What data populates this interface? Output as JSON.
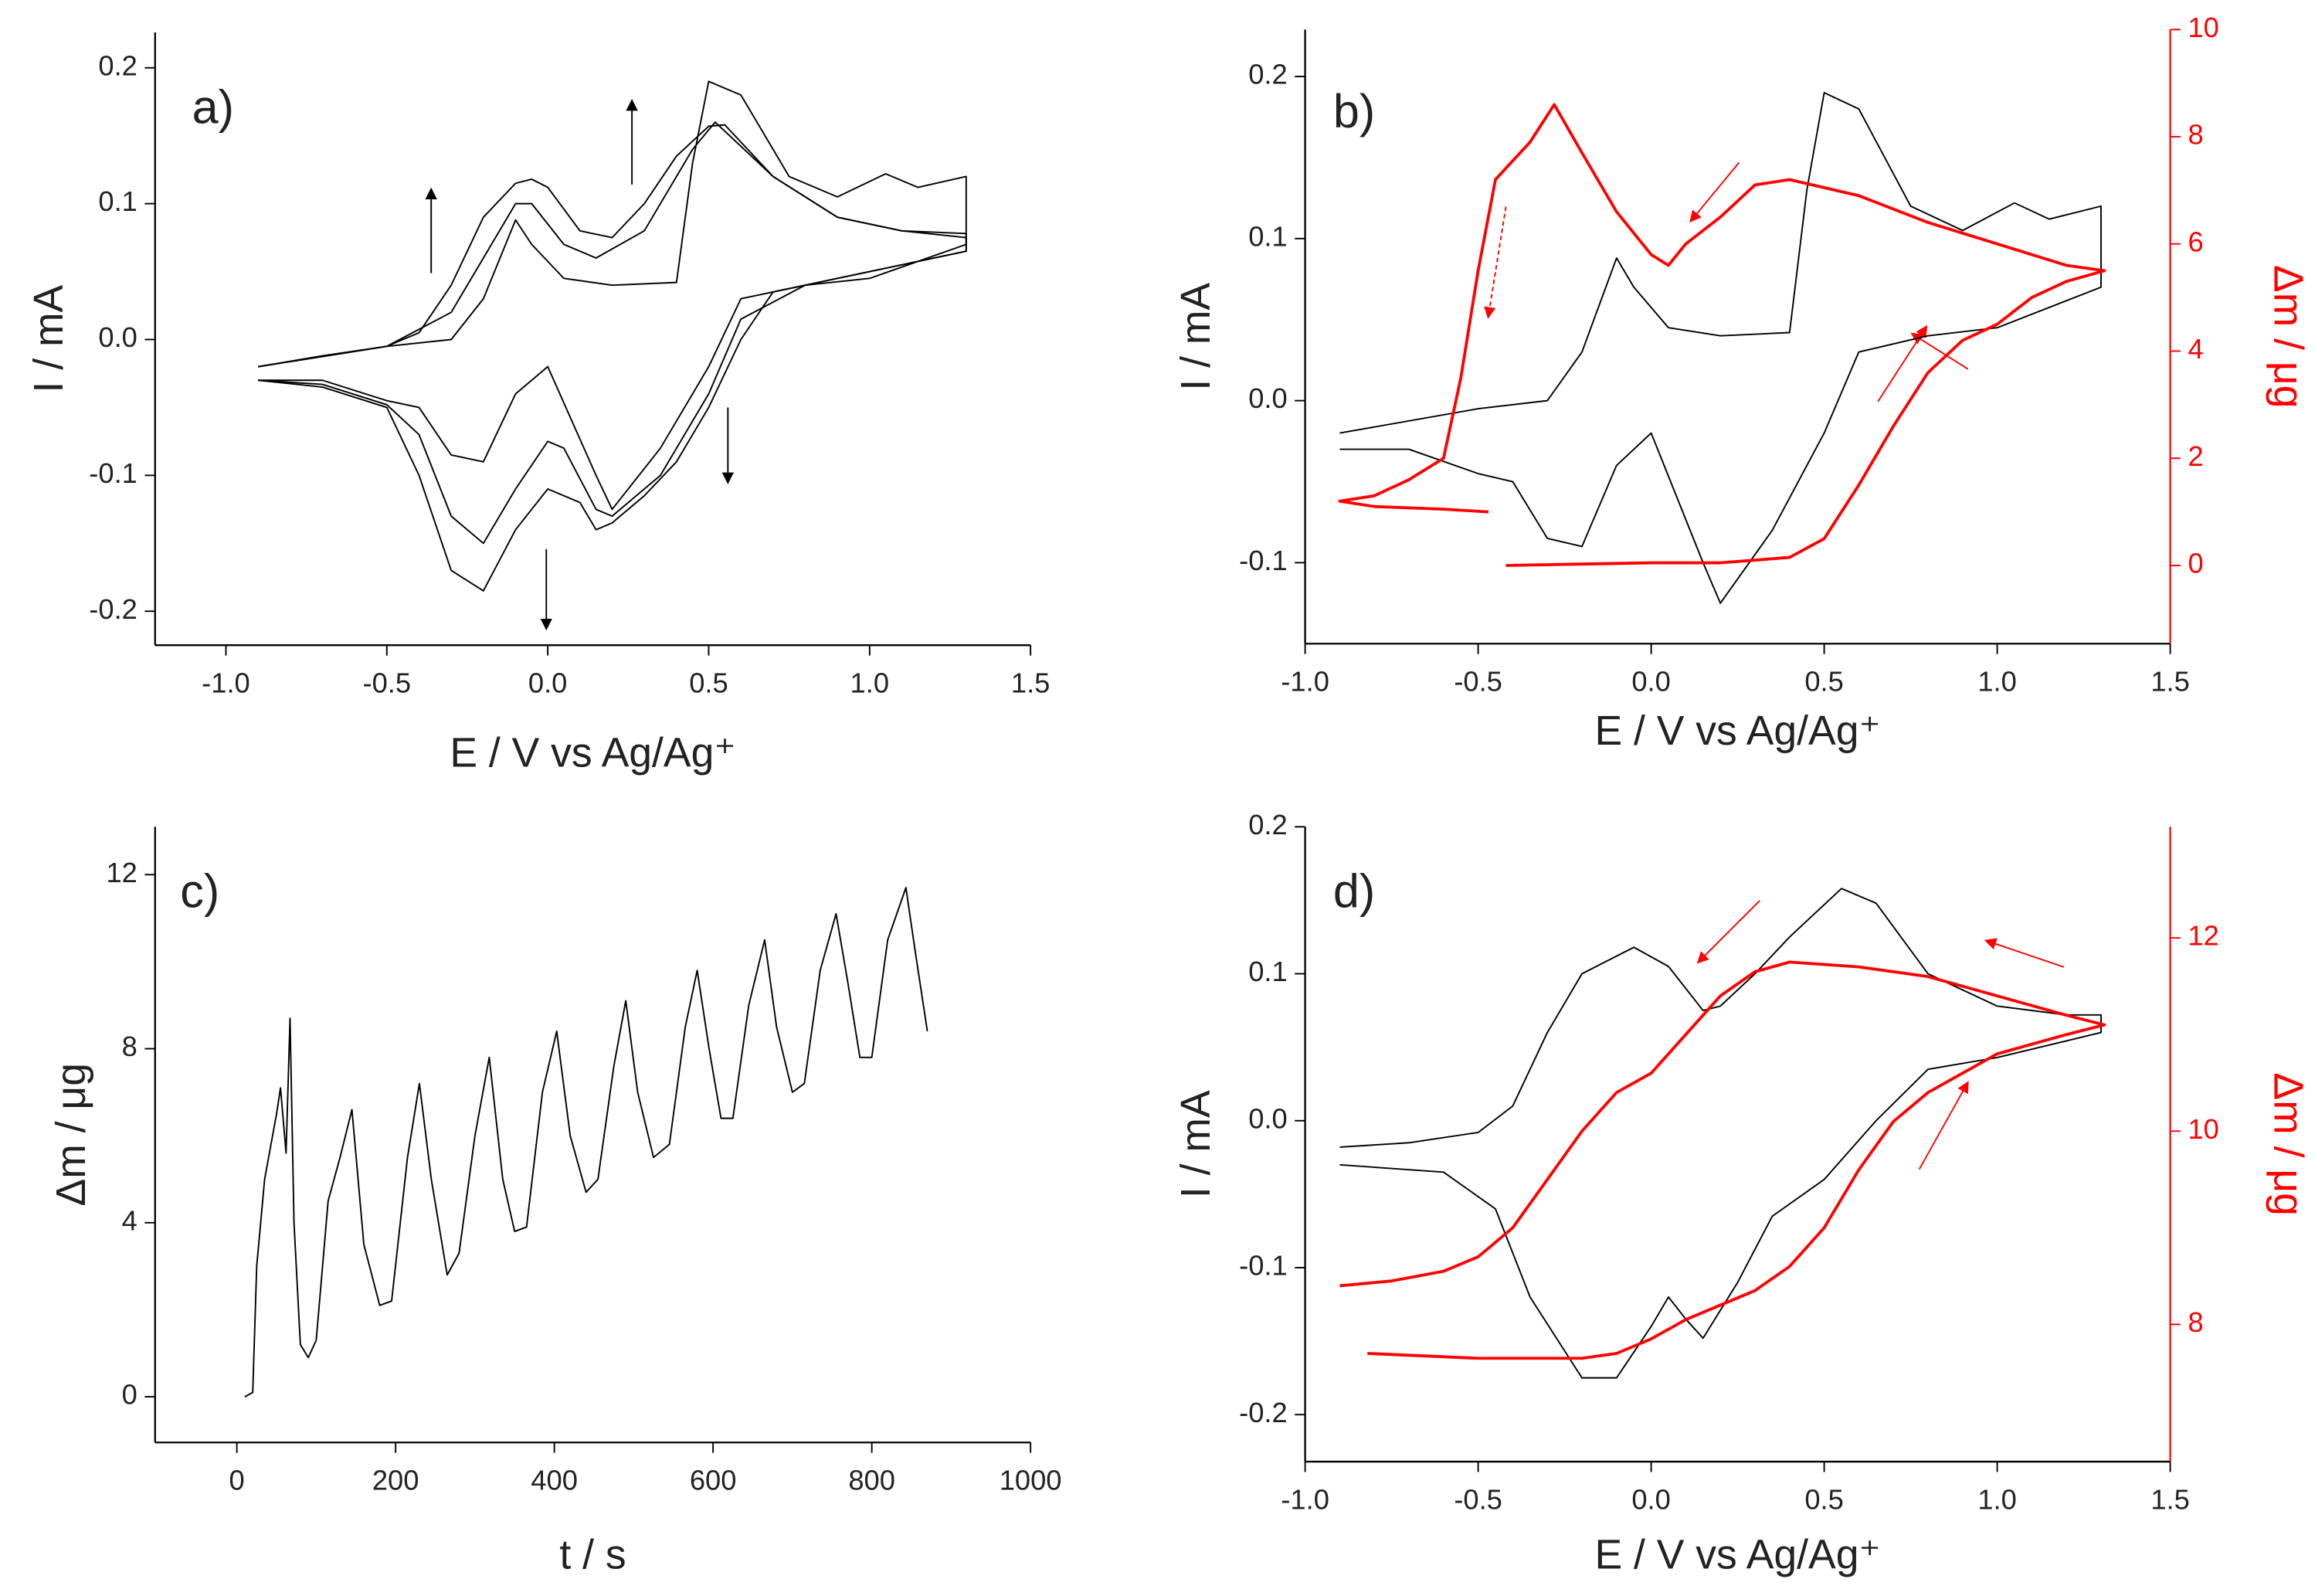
{
  "chart_data": [
    {
      "type": "line",
      "title": "a)",
      "xlabel": "E / V vs Ag/Ag⁺",
      "ylabel": "I / mA",
      "xlim": [
        -1.22,
        1.5
      ],
      "ylim": [
        -0.225,
        0.226
      ],
      "xticks": [
        {
          "value": -1,
          "label": "-1.0"
        },
        -0.5,
        {
          "value": 0,
          "label": "0.0"
        },
        0.5,
        {
          "value": 1,
          "label": "1.0"
        },
        1.5
      ],
      "yticks": [
        -0.2,
        -0.1,
        {
          "value": 0,
          "label": "0.0"
        },
        0.1,
        0.2
      ],
      "series": [
        {
          "color": "#000000",
          "x": [
            -0.9,
            -0.5,
            -0.3,
            -0.2,
            -0.1,
            -0.05,
            0.05,
            0.2,
            0.4,
            0.45,
            0.5,
            0.6,
            0.75,
            0.9,
            1.05,
            1.15,
            1.3,
            1.3,
            1.0,
            0.8,
            0.6,
            0.5,
            0.35,
            0.2,
            0.15,
            0.0,
            -0.1,
            -0.2,
            -0.3,
            -0.4,
            -0.5,
            -0.7,
            -0.9
          ],
          "values": [
            -0.02,
            -0.005,
            0.0,
            0.03,
            0.088,
            0.07,
            0.045,
            0.04,
            0.042,
            0.13,
            0.19,
            0.18,
            0.12,
            0.105,
            0.122,
            0.112,
            0.12,
            0.07,
            0.045,
            0.04,
            0.03,
            -0.02,
            -0.08,
            -0.125,
            -0.1,
            -0.02,
            -0.04,
            -0.09,
            -0.085,
            -0.05,
            -0.045,
            -0.03,
            -0.03
          ]
        },
        {
          "color": "#000000",
          "x": [
            -0.9,
            -0.5,
            -0.3,
            -0.2,
            -0.1,
            -0.05,
            0.05,
            0.15,
            0.3,
            0.45,
            0.52,
            0.7,
            0.9,
            1.1,
            1.3,
            1.3,
            1.0,
            0.8,
            0.6,
            0.5,
            0.35,
            0.2,
            0.15,
            0.05,
            0.0,
            -0.1,
            -0.2,
            -0.3,
            -0.4,
            -0.5,
            -0.7,
            -0.9
          ],
          "values": [
            -0.02,
            -0.005,
            0.02,
            0.06,
            0.1,
            0.1,
            0.07,
            0.06,
            0.08,
            0.14,
            0.16,
            0.12,
            0.09,
            0.08,
            0.078,
            0.065,
            0.05,
            0.04,
            0.015,
            -0.04,
            -0.1,
            -0.13,
            -0.125,
            -0.08,
            -0.075,
            -0.11,
            -0.15,
            -0.13,
            -0.07,
            -0.048,
            -0.033,
            -0.03
          ]
        },
        {
          "color": "#000000",
          "x": [
            -0.9,
            -0.7,
            -0.5,
            -0.4,
            -0.3,
            -0.2,
            -0.1,
            -0.05,
            0.0,
            0.1,
            0.2,
            0.3,
            0.4,
            0.5,
            0.55,
            0.7,
            0.9,
            1.1,
            1.3,
            1.3,
            1.1,
            0.9,
            0.7,
            0.6,
            0.5,
            0.4,
            0.3,
            0.2,
            0.15,
            0.1,
            0.0,
            -0.1,
            -0.2,
            -0.3,
            -0.4,
            -0.5,
            -0.7,
            -0.9
          ],
          "values": [
            -0.02,
            -0.012,
            -0.005,
            0.005,
            0.04,
            0.09,
            0.115,
            0.118,
            0.112,
            0.08,
            0.075,
            0.1,
            0.135,
            0.157,
            0.158,
            0.12,
            0.09,
            0.08,
            0.075,
            0.065,
            0.055,
            0.045,
            0.035,
            0.0,
            -0.05,
            -0.09,
            -0.115,
            -0.135,
            -0.14,
            -0.12,
            -0.11,
            -0.14,
            -0.185,
            -0.17,
            -0.1,
            -0.05,
            -0.035,
            -0.03
          ]
        }
      ]
    },
    {
      "type": "line",
      "title": "b)",
      "xlabel": "E / V vs Ag/Ag⁺",
      "ylabel": "I / mA",
      "y2label": "Δm / μg",
      "xlim": [
        -1,
        1.5
      ],
      "ylim": [
        -0.15,
        0.229
      ],
      "y2lim": [
        -1.46,
        10
      ],
      "xticks": [
        {
          "value": -1,
          "label": "-1.0"
        },
        -0.5,
        {
          "value": 0,
          "label": "0.0"
        },
        0.5,
        {
          "value": 1,
          "label": "1.0"
        },
        1.5
      ],
      "yticks": [
        -0.1,
        {
          "value": 0,
          "label": "0.0"
        },
        0.1,
        0.2
      ],
      "y2ticks": [
        0,
        2,
        4,
        6,
        8,
        10
      ],
      "series": [
        {
          "color": "#000000",
          "x": [
            -0.9,
            -0.5,
            -0.3,
            -0.2,
            -0.1,
            -0.05,
            0.05,
            0.2,
            0.4,
            0.45,
            0.5,
            0.6,
            0.75,
            0.9,
            1.05,
            1.15,
            1.3,
            1.3,
            1.0,
            0.8,
            0.6,
            0.5,
            0.35,
            0.2,
            0.15,
            0.0,
            -0.1,
            -0.2,
            -0.3,
            -0.4,
            -0.5,
            -0.7,
            -0.9
          ],
          "values": [
            -0.02,
            -0.005,
            0.0,
            0.03,
            0.088,
            0.07,
            0.045,
            0.04,
            0.042,
            0.13,
            0.19,
            0.18,
            0.12,
            0.105,
            0.122,
            0.112,
            0.12,
            0.07,
            0.045,
            0.04,
            0.03,
            -0.02,
            -0.08,
            -0.125,
            -0.1,
            -0.02,
            -0.04,
            -0.09,
            -0.085,
            -0.05,
            -0.045,
            -0.03,
            -0.03
          ]
        },
        {
          "color": "#ff0000",
          "axis": "y2",
          "x": [
            -0.42,
            0.0,
            0.2,
            0.4,
            0.5,
            0.6,
            0.7,
            0.8,
            0.9,
            1.0,
            1.1,
            1.2,
            1.31,
            1.2,
            1.0,
            0.8,
            0.6,
            0.4,
            0.3,
            0.2,
            0.1,
            0.05,
            0.0,
            -0.1,
            -0.2,
            -0.28,
            -0.35,
            -0.45,
            -0.5,
            -0.55,
            -0.6,
            -0.7,
            -0.8,
            -0.9,
            -0.8,
            -0.6,
            -0.47
          ],
          "values": [
            0.0,
            0.05,
            0.05,
            0.15,
            0.5,
            1.5,
            2.6,
            3.6,
            4.2,
            4.5,
            5.0,
            5.3,
            5.5,
            5.6,
            6.0,
            6.4,
            6.9,
            7.2,
            7.1,
            6.5,
            6.0,
            5.6,
            5.8,
            6.6,
            7.7,
            8.6,
            7.9,
            7.2,
            5.5,
            3.5,
            2.0,
            1.6,
            1.3,
            1.2,
            1.1,
            1.05,
            1.0
          ]
        }
      ]
    },
    {
      "type": "line",
      "title": "c)",
      "xlabel": "t / s",
      "ylabel": "Δm / μg",
      "xlim": [
        -103,
        1000
      ],
      "ylim": [
        -1.05,
        13.1
      ],
      "xticks": [
        0,
        200,
        400,
        600,
        800,
        1000
      ],
      "yticks": [
        0,
        4,
        8,
        12
      ],
      "series": [
        {
          "color": "#000000",
          "x": [
            10,
            20,
            25,
            35,
            50,
            55,
            62,
            67,
            72,
            80,
            90,
            100,
            115,
            130,
            145,
            160,
            180,
            195,
            215,
            230,
            245,
            265,
            280,
            300,
            318,
            335,
            350,
            365,
            385,
            403,
            420,
            440,
            455,
            475,
            490,
            505,
            525,
            545,
            565,
            580,
            595,
            610,
            625,
            645,
            665,
            680,
            700,
            715,
            735,
            755,
            770,
            785,
            800,
            820,
            843,
            855,
            870
          ],
          "values": [
            0,
            0.1,
            3,
            5,
            6.5,
            7.1,
            5.6,
            8.7,
            4,
            1.2,
            0.9,
            1.3,
            4.5,
            5.5,
            6.6,
            3.5,
            2.1,
            2.2,
            5.5,
            7.2,
            5,
            2.8,
            3.3,
            6,
            7.8,
            5,
            3.8,
            3.9,
            7,
            8.4,
            6,
            4.7,
            5,
            7.6,
            9.1,
            7,
            5.5,
            5.8,
            8.5,
            9.8,
            8,
            6.4,
            6.4,
            9,
            10.5,
            8.5,
            7,
            7.2,
            9.8,
            11.1,
            9.5,
            7.8,
            7.8,
            10.5,
            11.7,
            10.2,
            8.4
          ]
        }
      ]
    },
    {
      "type": "line",
      "title": "d)",
      "xlabel": "E / V vs Ag/Ag⁺",
      "ylabel": "I / mA",
      "y2label": "Δm / μg",
      "xlim": [
        -1,
        1.5
      ],
      "ylim": [
        -0.232,
        0.2
      ],
      "y2lim": [
        6.58,
        13.15
      ],
      "xticks": [
        {
          "value": -1,
          "label": "-1.0"
        },
        -0.5,
        {
          "value": 0,
          "label": "0.0"
        },
        0.5,
        {
          "value": 1,
          "label": "1.0"
        },
        1.5
      ],
      "yticks": [
        -0.2,
        -0.1,
        {
          "value": 0,
          "label": "0.0"
        },
        0.1,
        0.2
      ],
      "y2ticks": [
        8,
        10,
        12
      ],
      "series": [
        {
          "color": "#000000",
          "x": [
            -0.9,
            -0.7,
            -0.5,
            -0.4,
            -0.3,
            -0.2,
            -0.05,
            0.05,
            0.15,
            0.2,
            0.3,
            0.4,
            0.55,
            0.65,
            0.8,
            1.0,
            1.2,
            1.3,
            1.3,
            1.0,
            0.8,
            0.65,
            0.5,
            0.35,
            0.25,
            0.15,
            0.1,
            0.05,
            0.0,
            -0.1,
            -0.2,
            -0.35,
            -0.45,
            -0.6,
            -0.9
          ],
          "values": [
            -0.018,
            -0.015,
            -0.008,
            0.01,
            0.06,
            0.1,
            0.118,
            0.105,
            0.075,
            0.078,
            0.1,
            0.125,
            0.158,
            0.148,
            0.1,
            0.078,
            0.072,
            0.072,
            0.06,
            0.043,
            0.035,
            0.0,
            -0.04,
            -0.065,
            -0.11,
            -0.148,
            -0.135,
            -0.12,
            -0.14,
            -0.175,
            -0.175,
            -0.12,
            -0.06,
            -0.035,
            -0.03
          ]
        },
        {
          "color": "#ff0000",
          "axis": "y2",
          "x": [
            -0.82,
            -0.5,
            -0.2,
            -0.1,
            0.0,
            0.1,
            0.2,
            0.3,
            0.4,
            0.5,
            0.6,
            0.7,
            0.8,
            0.9,
            1.0,
            1.1,
            1.2,
            1.31,
            1.2,
            1.0,
            0.8,
            0.6,
            0.4,
            0.3,
            0.2,
            0.1,
            0.0,
            -0.1,
            -0.2,
            -0.3,
            -0.4,
            -0.5,
            -0.6,
            -0.75,
            -0.9
          ],
          "values": [
            7.7,
            7.65,
            7.65,
            7.7,
            7.85,
            8.05,
            8.2,
            8.35,
            8.6,
            9.0,
            9.6,
            10.1,
            10.4,
            10.6,
            10.8,
            10.9,
            11.0,
            11.1,
            11.2,
            11.4,
            11.6,
            11.7,
            11.75,
            11.65,
            11.4,
            11.0,
            10.6,
            10.4,
            10.0,
            9.5,
            9.0,
            8.7,
            8.55,
            8.45,
            8.4
          ]
        }
      ]
    }
  ]
}
